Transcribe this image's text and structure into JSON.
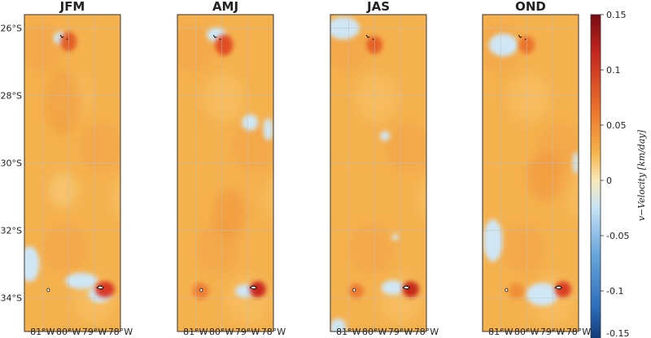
{
  "panels": [
    {
      "title": "JFM"
    },
    {
      "title": "AMJ"
    },
    {
      "title": "JAS"
    },
    {
      "title": "OND"
    }
  ],
  "y_ticks": [
    "26°S",
    "28°S",
    "30°S",
    "32°S",
    "34°S"
  ],
  "y_tick_values": [
    -26,
    -28,
    -30,
    -32,
    -34
  ],
  "x_ticks": [
    "81°W",
    "80°W",
    "79°W",
    "78°W"
  ],
  "x_tick_values": [
    -81,
    -80,
    -79,
    -78
  ],
  "colorbar": {
    "label": "v−Velocity [km/day]",
    "ticks": [
      "0.15",
      "0.1",
      "0.05",
      "0",
      "-0.05",
      "-0.1",
      "-0.15"
    ],
    "tick_values": [
      0.15,
      0.1,
      0.05,
      0,
      -0.05,
      -0.1,
      -0.15
    ],
    "range": [
      -0.15,
      0.15
    ],
    "colors": [
      "#0b2d6b",
      "#2c6fba",
      "#6aa7de",
      "#c9e3f4",
      "#f7e9b9",
      "#f6b54d",
      "#ec7a2c",
      "#c6281f",
      "#7a0a12"
    ]
  },
  "map_extent": {
    "lon": [
      -81.7,
      -78
    ],
    "lat": [
      -35,
      -25.6
    ]
  },
  "palette": {
    "background_orange": "#f5b14e",
    "axis": "#333333",
    "grid": "#bfbfbf"
  }
}
